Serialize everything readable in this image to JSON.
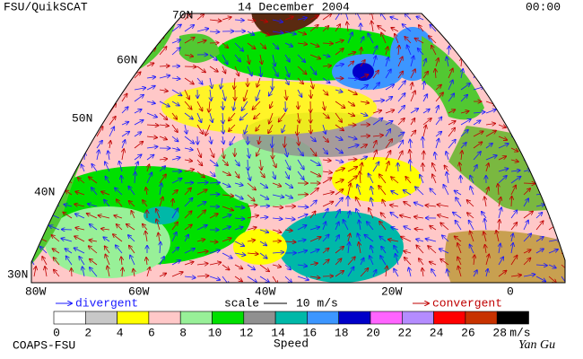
{
  "header": {
    "left": "FSU/QuikSCAT",
    "date": "14 December 2004",
    "time": "00:00"
  },
  "map": {
    "lat_labels": [
      "70N",
      "60N",
      "50N",
      "40N",
      "30N"
    ],
    "lon_labels": [
      "80W",
      "60W",
      "40W",
      "20W",
      "0"
    ]
  },
  "legend": {
    "divergent": "divergent",
    "scale": "scale",
    "scale_value": "10 m/s",
    "convergent": "convergent"
  },
  "colorbar": {
    "labels": [
      "0",
      "2",
      "4",
      "6",
      "8",
      "10",
      "12",
      "14",
      "16",
      "18",
      "20",
      "22",
      "24",
      "26",
      "28"
    ],
    "unit": "m/s",
    "title": "Speed",
    "colors": [
      "#ffffff",
      "#c8c8c8",
      "#ffff00",
      "#ffc8c8",
      "#98f098",
      "#00e000",
      "#909090",
      "#00b8a8",
      "#3c96ff",
      "#0000c8",
      "#ff64ff",
      "#b48cff",
      "#ff0000",
      "#c83200",
      "#000000"
    ]
  },
  "footer": {
    "left": "COAPS-FSU",
    "signature": "Yan Gu"
  }
}
